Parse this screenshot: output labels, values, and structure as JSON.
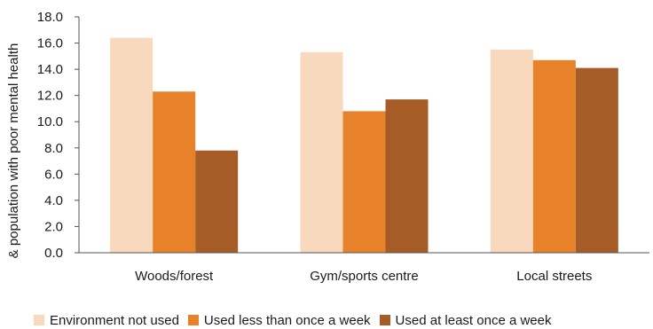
{
  "chart_data": {
    "type": "bar",
    "categories": [
      "Woods/forest",
      "Gym/sports centre",
      "Local streets"
    ],
    "series": [
      {
        "name": "Environment not used",
        "values": [
          16.4,
          15.3,
          15.5
        ],
        "color": "#f9d9be"
      },
      {
        "name": "Used less than once a week",
        "values": [
          12.3,
          10.8,
          14.7
        ],
        "color": "#e8822a"
      },
      {
        "name": "Used at least once a week",
        "values": [
          7.8,
          11.7,
          14.1
        ],
        "color": "#a65c26"
      }
    ],
    "ylabel": "& population with poor mental health",
    "xlabel": "",
    "ylim": [
      0,
      18
    ],
    "yticks": [
      "0.0",
      "2.0",
      "4.0",
      "6.0",
      "8.0",
      "10.0",
      "12.0",
      "14.0",
      "16.0",
      "18.0"
    ],
    "grid": false,
    "legend_position": "bottom"
  }
}
